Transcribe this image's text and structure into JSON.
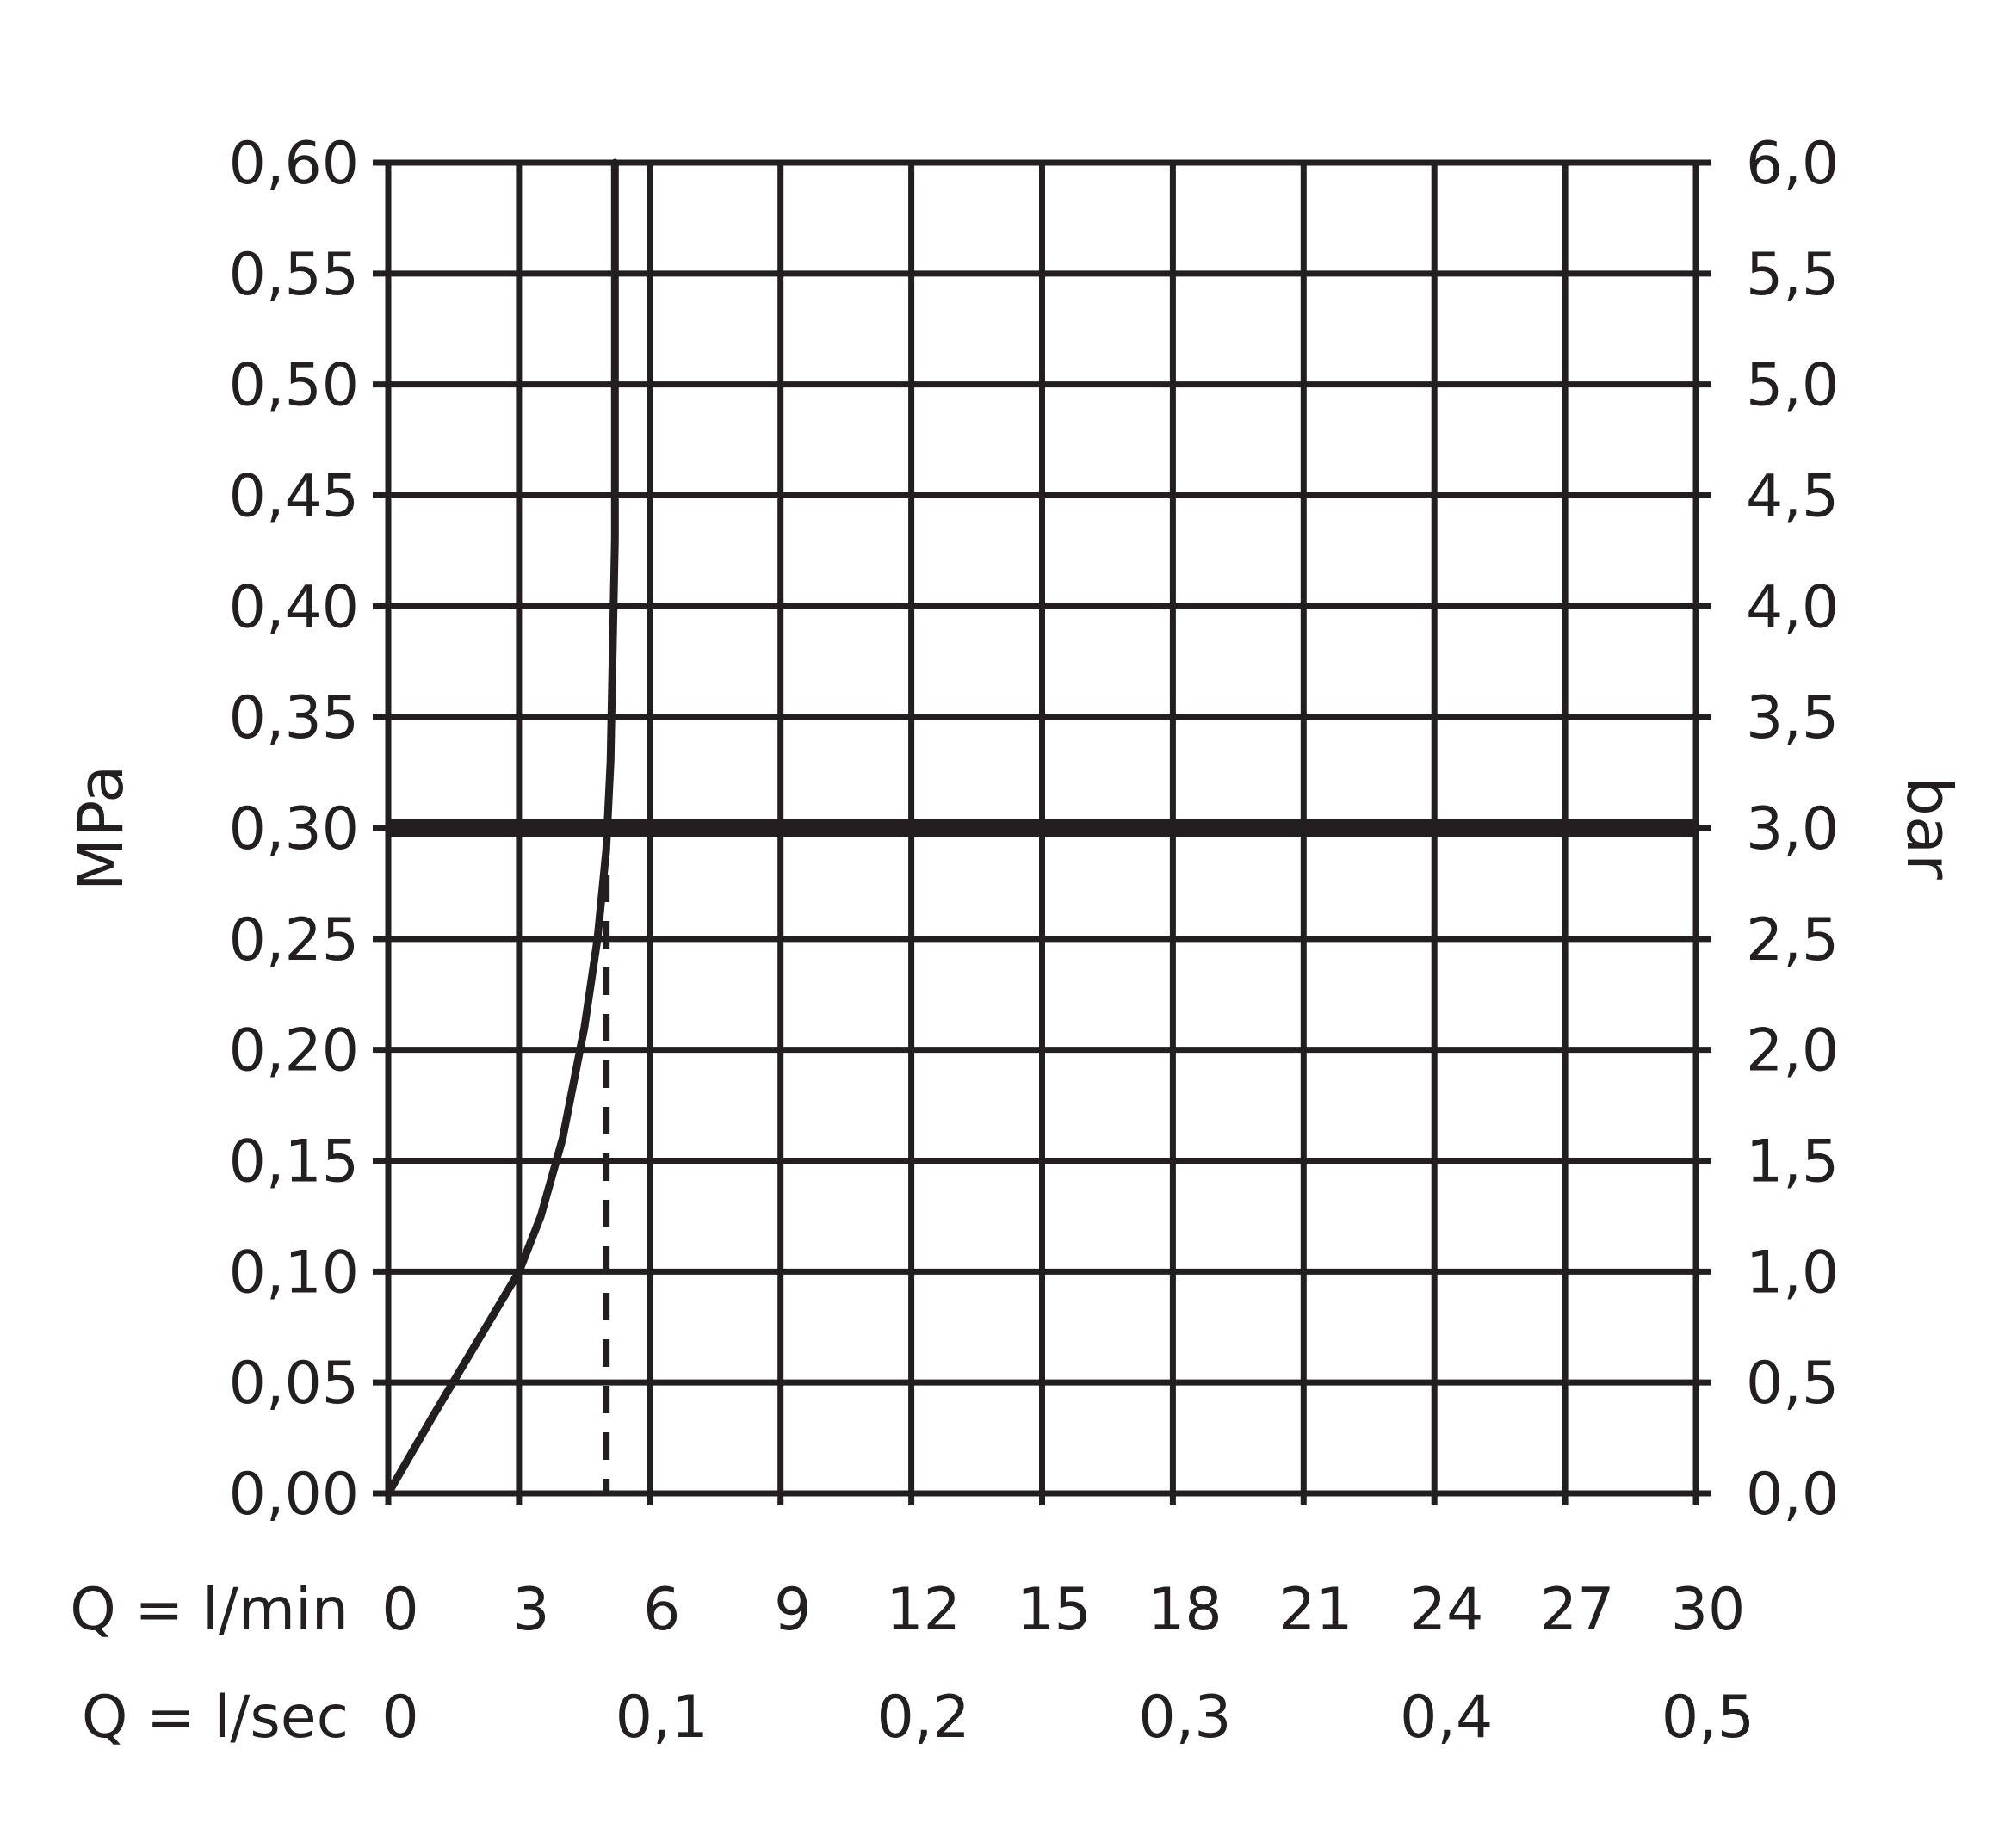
{
  "chart_data": {
    "type": "line",
    "x_axis_primary": {
      "label": "Q = l/min",
      "ticks": [
        "0",
        "3",
        "6",
        "9",
        "12",
        "15",
        "18",
        "21",
        "24",
        "27",
        "30"
      ],
      "range": [
        0,
        30
      ],
      "unit": "l/min"
    },
    "x_axis_secondary": {
      "label": "Q = l/sec",
      "ticks": [
        {
          "text": "0",
          "value": 0
        },
        {
          "text": "0,1",
          "value": 6
        },
        {
          "text": "0,2",
          "value": 12
        },
        {
          "text": "0,3",
          "value": 18
        },
        {
          "text": "0,4",
          "value": 24
        },
        {
          "text": "0,5",
          "value": 30
        }
      ]
    },
    "y_axis_left": {
      "label": "MPa",
      "ticks": [
        "0,00",
        "0,05",
        "0,10",
        "0,15",
        "0,20",
        "0,25",
        "0,30",
        "0,35",
        "0,40",
        "0,45",
        "0,50",
        "0,55",
        "0,60"
      ],
      "range": [
        0,
        0.6
      ],
      "unit": "MPa"
    },
    "y_axis_right": {
      "label": "bar",
      "ticks": [
        "0,0",
        "0,5",
        "1,0",
        "1,5",
        "2,0",
        "2,5",
        "3,0",
        "3,5",
        "4,0",
        "4,5",
        "5,0",
        "5,5",
        "6,0"
      ],
      "range": [
        0,
        6
      ]
    },
    "grid": true,
    "series": [
      {
        "x": [
          0,
          1,
          2,
          3,
          3.5,
          4,
          4.5,
          4.8,
          5.0,
          5.1,
          5.2,
          5.2
        ],
        "y": [
          0,
          0.034,
          0.067,
          0.1,
          0.125,
          0.16,
          0.21,
          0.25,
          0.29,
          0.33,
          0.43,
          0.6
        ],
        "color": "#231f20"
      }
    ],
    "reference_lines": {
      "horizontal_y": 0.3,
      "vertical_dashed_x": 5.0
    }
  }
}
